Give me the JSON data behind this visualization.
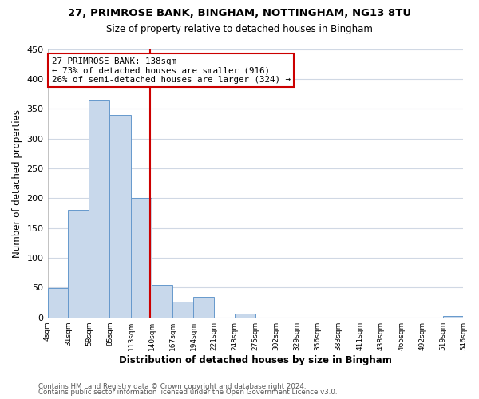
{
  "title": "27, PRIMROSE BANK, BINGHAM, NOTTINGHAM, NG13 8TU",
  "subtitle": "Size of property relative to detached houses in Bingham",
  "xlabel": "Distribution of detached houses by size in Bingham",
  "ylabel": "Number of detached properties",
  "bar_color": "#c8d8eb",
  "bar_edge_color": "#6699cc",
  "bin_edges": [
    4,
    31,
    58,
    85,
    113,
    140,
    167,
    194,
    221,
    248,
    275,
    302,
    329,
    356,
    383,
    411,
    438,
    465,
    492,
    519,
    546
  ],
  "bin_labels": [
    "4sqm",
    "31sqm",
    "58sqm",
    "85sqm",
    "113sqm",
    "140sqm",
    "167sqm",
    "194sqm",
    "221sqm",
    "248sqm",
    "275sqm",
    "302sqm",
    "329sqm",
    "356sqm",
    "383sqm",
    "411sqm",
    "438sqm",
    "465sqm",
    "492sqm",
    "519sqm",
    "546sqm"
  ],
  "counts": [
    49,
    180,
    365,
    340,
    200,
    55,
    26,
    34,
    0,
    6,
    0,
    0,
    0,
    0,
    0,
    0,
    0,
    0,
    0,
    2
  ],
  "property_value": 138,
  "vline_color": "#cc0000",
  "annotation_line1": "27 PRIMROSE BANK: 138sqm",
  "annotation_line2": "← 73% of detached houses are smaller (916)",
  "annotation_line3": "26% of semi-detached houses are larger (324) →",
  "annotation_box_color": "#ffffff",
  "annotation_box_edge": "#cc0000",
  "ylim": [
    0,
    450
  ],
  "yticks": [
    0,
    50,
    100,
    150,
    200,
    250,
    300,
    350,
    400,
    450
  ],
  "footer1": "Contains HM Land Registry data © Crown copyright and database right 2024.",
  "footer2": "Contains public sector information licensed under the Open Government Licence v3.0.",
  "background_color": "#ffffff",
  "grid_color": "#d0d8e4"
}
